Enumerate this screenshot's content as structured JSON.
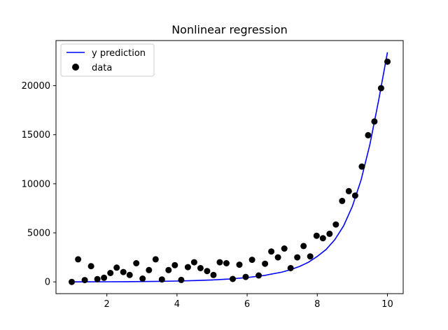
{
  "chart_data": {
    "type": "scatter",
    "title": "Nonlinear regression",
    "xlabel": "",
    "ylabel": "",
    "xlim": [
      0.55,
      10.45
    ],
    "ylim": [
      -1200,
      24600
    ],
    "xticks": [
      2,
      4,
      6,
      8,
      10
    ],
    "yticks": [
      0,
      5000,
      10000,
      15000,
      20000
    ],
    "grid": false,
    "legend_position": "top-left",
    "series": [
      {
        "name": "y prediction",
        "kind": "line",
        "color": "#0000ff",
        "x": [
          1.0,
          1.5,
          2.0,
          2.5,
          3.0,
          3.5,
          4.0,
          4.5,
          5.0,
          5.5,
          6.0,
          6.5,
          7.0,
          7.25,
          7.5,
          7.75,
          8.0,
          8.25,
          8.5,
          8.75,
          9.0,
          9.25,
          9.5,
          9.75,
          10.0
        ],
        "y": [
          0,
          5,
          12,
          22,
          35,
          55,
          85,
          130,
          195,
          290,
          440,
          660,
          1000,
          1260,
          1580,
          2000,
          2600,
          3300,
          4300,
          5700,
          7700,
          10400,
          14000,
          18500,
          23400
        ]
      },
      {
        "name": "data",
        "kind": "scatter",
        "color": "#000000",
        "x": [
          1.0,
          1.18,
          1.37,
          1.55,
          1.73,
          1.92,
          2.1,
          2.28,
          2.47,
          2.65,
          2.84,
          3.02,
          3.2,
          3.39,
          3.57,
          3.76,
          3.94,
          4.12,
          4.31,
          4.49,
          4.67,
          4.86,
          5.04,
          5.22,
          5.41,
          5.59,
          5.78,
          5.96,
          6.14,
          6.33,
          6.51,
          6.69,
          6.88,
          7.06,
          7.24,
          7.43,
          7.61,
          7.8,
          7.98,
          8.16,
          8.35,
          8.53,
          8.71,
          8.9,
          9.08,
          9.27,
          9.45,
          9.63,
          9.82,
          10.0
        ],
        "y": [
          0,
          2300,
          180,
          1600,
          280,
          420,
          900,
          1450,
          1000,
          700,
          1900,
          330,
          1200,
          2300,
          250,
          1200,
          1700,
          200,
          1500,
          2000,
          1400,
          1100,
          700,
          2000,
          1900,
          300,
          1750,
          500,
          2250,
          650,
          1850,
          3100,
          2500,
          3400,
          1400,
          2500,
          3650,
          2600,
          4700,
          4450,
          4900,
          5850,
          8250,
          9250,
          8800,
          11750,
          14950,
          16350,
          19750,
          22450
        ]
      }
    ]
  }
}
